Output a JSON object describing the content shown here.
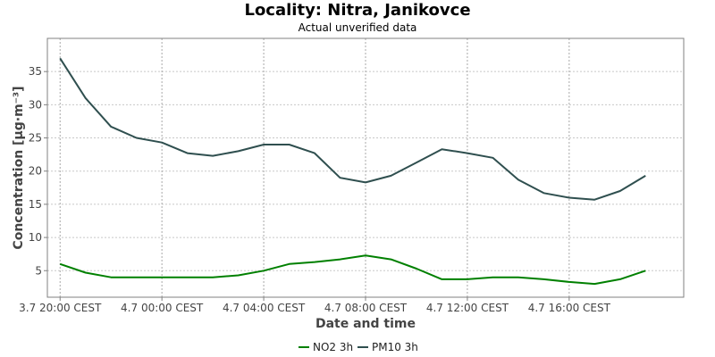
{
  "header": {
    "title": "Locality: Nitra, Janikovce",
    "subtitle": "Actual unverified data"
  },
  "chart_data": {
    "type": "line",
    "title": "Locality: Nitra, Janikovce",
    "subtitle": "Actual unverified data",
    "xlabel": "Date and time",
    "ylabel": "Concentration [µg·m⁻³]",
    "ylim": [
      1,
      40
    ],
    "yticks": [
      5,
      10,
      15,
      20,
      25,
      30,
      35
    ],
    "x_hours": [
      -4,
      -3,
      -2,
      -1,
      0,
      1,
      2,
      3,
      4,
      5,
      6,
      7,
      8,
      9,
      10,
      11,
      12,
      13,
      14,
      15,
      16,
      17,
      18,
      19
    ],
    "x_tick_labels": [
      {
        "hour": -4,
        "label": "3.7 20:00 CEST"
      },
      {
        "hour": 0,
        "label": "4.7 00:00 CEST"
      },
      {
        "hour": 4,
        "label": "4.7 04:00 CEST"
      },
      {
        "hour": 8,
        "label": "4.7 08:00 CEST"
      },
      {
        "hour": 12,
        "label": "4.7 12:00 CEST"
      },
      {
        "hour": 16,
        "label": "4.7 16:00 CEST"
      }
    ],
    "xlim_hours": [
      -4.5,
      20.5
    ],
    "grid": true,
    "legend_position": "bottom",
    "series": [
      {
        "name": "NO2 3h",
        "color": "#008000",
        "values": [
          6.0,
          4.7,
          4.0,
          4.0,
          4.0,
          4.0,
          4.0,
          4.3,
          5.0,
          6.0,
          6.3,
          6.7,
          7.3,
          6.7,
          5.3,
          3.7,
          3.7,
          4.0,
          4.0,
          3.7,
          3.3,
          3.0,
          3.7,
          5.0
        ]
      },
      {
        "name": "PM10 3h",
        "color": "#2f4f4f",
        "values": [
          37.0,
          31.0,
          26.7,
          25.0,
          24.3,
          22.7,
          22.3,
          23.0,
          24.0,
          24.0,
          22.7,
          19.0,
          18.3,
          19.3,
          21.3,
          23.3,
          22.7,
          22.0,
          18.7,
          16.7,
          16.0,
          15.7,
          17.0,
          19.3
        ]
      }
    ]
  }
}
